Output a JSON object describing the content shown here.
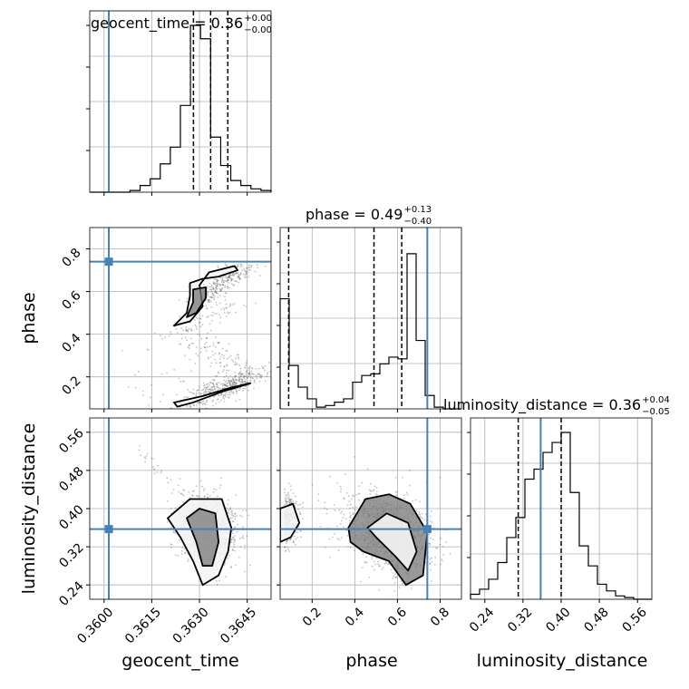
{
  "chart_data": {
    "type": "corner",
    "parameters": [
      "geocent_time",
      "phase",
      "luminosity_distance"
    ],
    "axis_labels": {
      "geocent_time": "geocent_time",
      "phase": "phase",
      "luminosity_distance": "luminosity_distance"
    },
    "titles": [
      {
        "param": "geocent_time",
        "text": "geocent_time = 0.36",
        "plus": "+0.00",
        "minus": "−0.00"
      },
      {
        "param": "phase",
        "text": "phase = 0.49",
        "plus": "+0.13",
        "minus": "−0.40"
      },
      {
        "param": "luminosity_distance",
        "text": "luminosity_distance = 0.36",
        "plus": "+0.04",
        "minus": "−0.05"
      }
    ],
    "ranges": {
      "geocent_time": [
        0.35955,
        0.36525
      ],
      "phase": [
        0.05,
        0.9
      ],
      "luminosity_distance": [
        0.21,
        0.59
      ]
    },
    "ticks": {
      "geocent_time": {
        "values": [
          0.36,
          0.3615,
          0.363,
          0.3645
        ],
        "labels": [
          "0.3600",
          "0.3615",
          "0.3630",
          "0.3645"
        ]
      },
      "phase": {
        "values": [
          0.2,
          0.4,
          0.6,
          0.8
        ],
        "labels": [
          "0.2",
          "0.4",
          "0.6",
          "0.8"
        ]
      },
      "luminosity_distance": {
        "values": [
          0.24,
          0.32,
          0.4,
          0.48,
          0.56
        ],
        "labels": [
          "0.24",
          "0.32",
          "0.40",
          "0.48",
          "0.56"
        ]
      }
    },
    "truths": {
      "geocent_time": 0.36015,
      "phase": 0.74,
      "luminosity_distance": 0.357
    },
    "quantiles": {
      "geocent_time": [
        0.36281,
        0.36335,
        0.36389
      ],
      "phase": [
        0.09,
        0.49,
        0.62
      ],
      "luminosity_distance": [
        0.31,
        0.357,
        0.4
      ]
    },
    "histograms": {
      "geocent_time": [
        0,
        0,
        0,
        0,
        0.01,
        0.04,
        0.08,
        0.17,
        0.27,
        0.52,
        1.0,
        0.92,
        0.33,
        0.16,
        0.07,
        0.04,
        0.02,
        0.01
      ],
      "phase": [
        0.66,
        0.26,
        0.13,
        0.06,
        0.01,
        0.02,
        0.04,
        0.06,
        0.16,
        0.2,
        0.21,
        0.27,
        0.31,
        0.3,
        0.93,
        0.41,
        0.08,
        0.01,
        0,
        0
      ],
      "luminosity_distance": [
        0.03,
        0.06,
        0.12,
        0.22,
        0.37,
        0.49,
        0.72,
        0.78,
        0.88,
        0.94,
        1.0,
        0.64,
        0.32,
        0.2,
        0.09,
        0.05,
        0.02,
        0.01,
        0,
        0
      ]
    },
    "grid": true,
    "colors": {
      "truth": "#4682b4",
      "line": "#000000",
      "grid": "#b0b0b0"
    }
  }
}
